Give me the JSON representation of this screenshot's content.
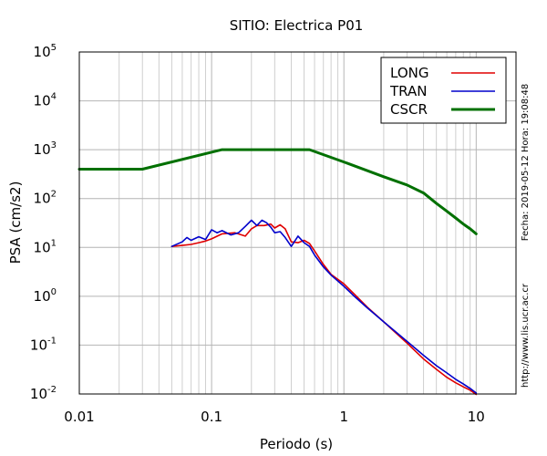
{
  "chart_data": {
    "type": "line",
    "title": "SITIO: Electrica P01",
    "xlabel": "Periodo (s)",
    "ylabel": "PSA (cm/s2)",
    "x_scale": "log",
    "y_scale": "log",
    "xlim": [
      0.01,
      20
    ],
    "ylim": [
      0.01,
      100000
    ],
    "grid": true,
    "legend_position": "top-right",
    "x_ticks": [
      {
        "value": 0.01,
        "label": "0.01"
      },
      {
        "value": 0.1,
        "label": "0.1"
      },
      {
        "value": 1,
        "label": "1"
      },
      {
        "value": 10,
        "label": "10"
      }
    ],
    "y_ticks": [
      {
        "value": 0.01,
        "base": "10",
        "exp": "-2"
      },
      {
        "value": 0.1,
        "base": "10",
        "exp": "-1"
      },
      {
        "value": 1,
        "base": "10",
        "exp": "0"
      },
      {
        "value": 10,
        "base": "10",
        "exp": "1"
      },
      {
        "value": 100,
        "base": "10",
        "exp": "2"
      },
      {
        "value": 1000,
        "base": "10",
        "exp": "3"
      },
      {
        "value": 10000,
        "base": "10",
        "exp": "4"
      },
      {
        "value": 100000,
        "base": "10",
        "exp": "5"
      }
    ],
    "series": [
      {
        "name": "LONG",
        "color": "#e00000",
        "x": [
          0.05,
          0.06,
          0.07,
          0.08,
          0.09,
          0.1,
          0.12,
          0.15,
          0.18,
          0.2,
          0.22,
          0.25,
          0.28,
          0.3,
          0.33,
          0.36,
          0.4,
          0.45,
          0.5,
          0.55,
          0.6,
          0.7,
          0.8,
          1.0,
          1.2,
          1.5,
          2.0,
          3.0,
          4.0,
          5.0,
          6.0,
          7.0,
          8.0,
          9.0,
          10.0
        ],
        "y": [
          10.5,
          11.0,
          11.5,
          12.5,
          13.5,
          15.0,
          19.0,
          20.0,
          17.0,
          24.0,
          28.0,
          28.0,
          30.0,
          25.0,
          29.0,
          24.0,
          13.0,
          12.5,
          14.0,
          12.0,
          8.5,
          4.5,
          2.8,
          1.8,
          1.1,
          0.6,
          0.3,
          0.11,
          0.052,
          0.032,
          0.022,
          0.017,
          0.014,
          0.012,
          0.0098
        ]
      },
      {
        "name": "TRAN",
        "color": "#0000cc",
        "x": [
          0.05,
          0.06,
          0.065,
          0.07,
          0.08,
          0.09,
          0.1,
          0.11,
          0.12,
          0.14,
          0.16,
          0.18,
          0.2,
          0.22,
          0.24,
          0.26,
          0.28,
          0.3,
          0.33,
          0.36,
          0.4,
          0.45,
          0.5,
          0.55,
          0.6,
          0.7,
          0.8,
          1.0,
          1.2,
          1.5,
          2.0,
          3.0,
          4.0,
          5.0,
          6.0,
          7.0,
          8.0,
          9.0,
          10.0
        ],
        "y": [
          10.5,
          13.0,
          16.0,
          14.0,
          16.5,
          14.5,
          23.0,
          20.0,
          22.0,
          18.0,
          20.0,
          27.0,
          36.0,
          28.0,
          36.0,
          32.0,
          26.0,
          20.0,
          21.0,
          16.0,
          10.5,
          17.0,
          12.5,
          10.5,
          7.0,
          4.0,
          2.7,
          1.6,
          1.0,
          0.58,
          0.3,
          0.12,
          0.062,
          0.038,
          0.027,
          0.02,
          0.016,
          0.013,
          0.0105
        ]
      },
      {
        "name": "CSCR",
        "color": "#007000",
        "x": [
          0.01,
          0.03,
          0.12,
          0.55,
          1.0,
          2.0,
          3.0,
          4.0,
          5.0,
          6.0,
          7.0,
          8.0,
          9.0,
          10.0
        ],
        "y": [
          400,
          400,
          1000,
          1000,
          560,
          280,
          190,
          130,
          80,
          55,
          40,
          30,
          24,
          19
        ]
      }
    ],
    "annotations": {
      "date_text": "Fecha: 2019-05-12 Hora: 19:08:48",
      "url_text": "http://www.lis.ucr.ac.cr"
    }
  }
}
